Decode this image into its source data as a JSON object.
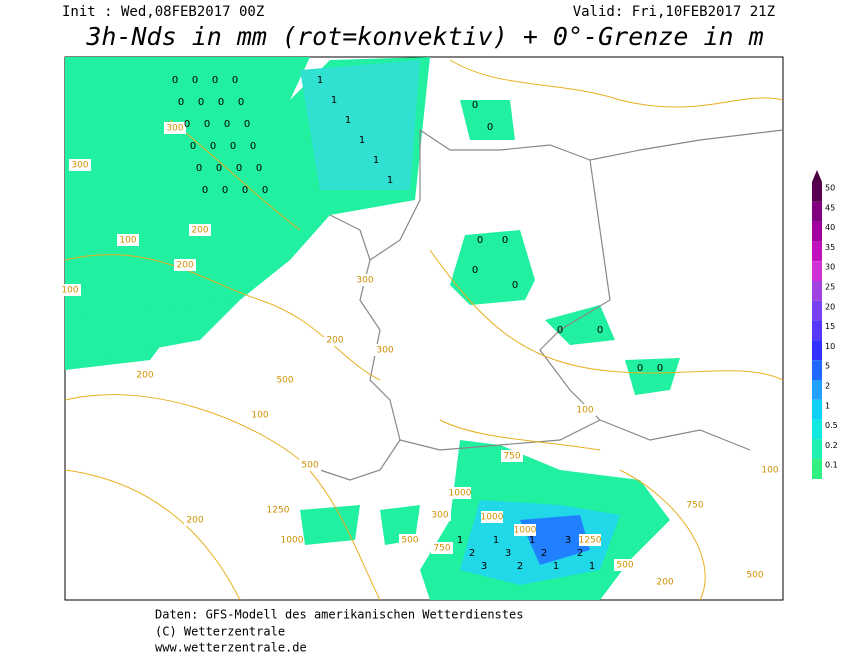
{
  "header": {
    "init": "Init : Wed,08FEB2017 00Z",
    "valid": "Valid: Fri,10FEB2017 21Z",
    "title": "3h-Nds in mm (rot=konvektiv) + 0°-Grenze in m"
  },
  "scale": [
    {
      "label": "50",
      "color": "#5a0050"
    },
    {
      "label": "45",
      "color": "#800080"
    },
    {
      "label": "40",
      "color": "#a000a0"
    },
    {
      "label": "35",
      "color": "#c010c0"
    },
    {
      "label": "30",
      "color": "#d030d8"
    },
    {
      "label": "25",
      "color": "#a040e0"
    },
    {
      "label": "20",
      "color": "#7840f0"
    },
    {
      "label": "15",
      "color": "#5838f8"
    },
    {
      "label": "10",
      "color": "#3030ff"
    },
    {
      "label": "5",
      "color": "#2068ff"
    },
    {
      "label": "2",
      "color": "#20a0ff"
    },
    {
      "label": "1",
      "color": "#10d0f8"
    },
    {
      "label": "0.5",
      "color": "#10e8e0"
    },
    {
      "label": "0.2",
      "color": "#20f0b0"
    },
    {
      "label": "0.1",
      "color": "#30f080"
    }
  ],
  "contour_labels": [
    "300",
    "300",
    "200",
    "100",
    "200",
    "100",
    "300",
    "200",
    "100",
    "200",
    "500",
    "300",
    "100",
    "500",
    "1000",
    "750",
    "1250",
    "1000",
    "750",
    "500",
    "200",
    "1000",
    "1250",
    "1000",
    "500",
    "300",
    "100",
    "200",
    "750",
    "500"
  ],
  "precip_markers": [
    "0",
    "0",
    "0",
    "0",
    "0",
    "0",
    "0",
    "0",
    "0",
    "0",
    "0",
    "0",
    "0",
    "0",
    "0",
    "0",
    "0",
    "0",
    "0",
    "0",
    "0",
    "0",
    "0",
    "0",
    "1",
    "1",
    "1",
    "1",
    "1",
    "1",
    "0",
    "0",
    "0",
    "0",
    "0",
    "0",
    "0",
    "0",
    "0",
    "0",
    "1",
    "2",
    "3",
    "1",
    "3",
    "2",
    "1",
    "2",
    "1",
    "3",
    "2",
    "1"
  ],
  "footer": [
    "Daten: GFS-Modell des amerikanischen Wetterdienstes",
    "(C) Wetterzentrale",
    "www.wetterzentrale.de"
  ]
}
